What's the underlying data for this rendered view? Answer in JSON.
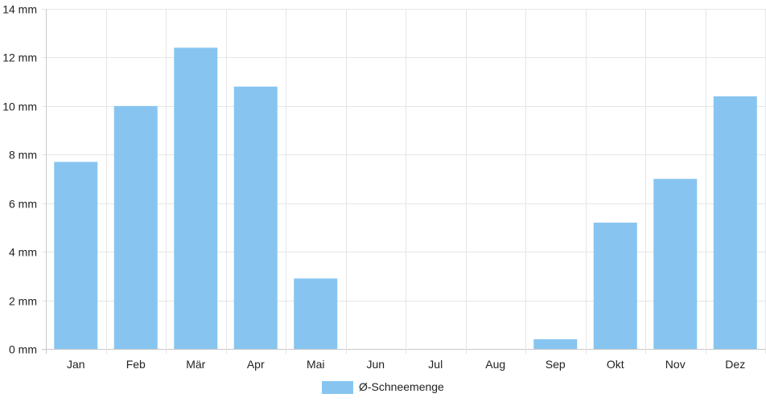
{
  "chart_data": {
    "type": "bar",
    "categories": [
      "Jan",
      "Feb",
      "Mär",
      "Apr",
      "Mai",
      "Jun",
      "Jul",
      "Aug",
      "Sep",
      "Okt",
      "Nov",
      "Dez"
    ],
    "series": [
      {
        "name": "Ø-Schneemenge",
        "values": [
          7.7,
          10.0,
          12.4,
          10.8,
          2.9,
          0,
          0,
          0,
          0.4,
          5.2,
          7.0,
          10.4
        ],
        "color": "#87c5f0"
      }
    ],
    "unit": "mm",
    "ylim": [
      0,
      14
    ],
    "yticks": [
      "0 mm",
      "2 mm",
      "4 mm",
      "6 mm",
      "8 mm",
      "10 mm",
      "12 mm",
      "14 mm"
    ],
    "grid": true,
    "legend_position": "bottom-center",
    "title": "",
    "xlabel": "",
    "ylabel": ""
  }
}
